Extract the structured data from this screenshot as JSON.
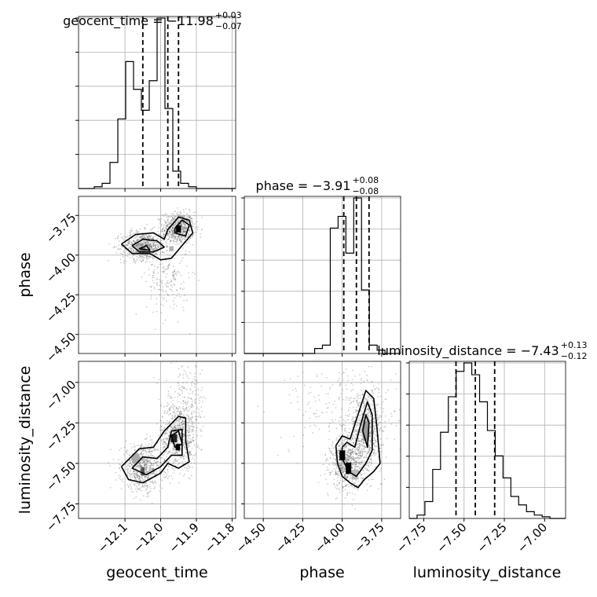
{
  "chart_data": {
    "type": "corner",
    "parameters": [
      "geocent_time",
      "phase",
      "luminosity_distance"
    ],
    "ranges": {
      "geocent_time": [
        -12.23,
        -11.79
      ],
      "phase": [
        -4.62,
        -3.63
      ],
      "luminosity_distance": [
        -7.84,
        -6.87
      ]
    },
    "ticks": {
      "geocent_time": {
        "values": [
          -12.1,
          -12.0,
          -11.9,
          -11.8
        ],
        "labels": [
          "−12.1",
          "−12.0",
          "−11.9",
          "−11.8"
        ]
      },
      "phase": {
        "values": [
          -4.5,
          -4.25,
          -4.0,
          -3.75
        ],
        "labels": [
          "−4.50",
          "−4.25",
          "−4.00",
          "−3.75"
        ]
      },
      "luminosity_distance": {
        "values": [
          -7.75,
          -7.5,
          -7.25,
          -7.0
        ],
        "labels": [
          "−7.75",
          "−7.50",
          "−7.25",
          "−7.00"
        ]
      }
    },
    "titles": [
      {
        "param": "geocent_time",
        "main": "geocent_time = −11.98",
        "sup": "+0.03",
        "sub": "−0.07"
      },
      {
        "param": "phase",
        "main": "phase = −3.91",
        "sup": "+0.08",
        "sub": "−0.08"
      },
      {
        "param": "luminosity_distance",
        "main": "luminosity_distance = −7.43",
        "sup": "+0.13",
        "sub": "−0.12"
      }
    ],
    "quantiles": {
      "geocent_time": [
        -12.05,
        -11.98,
        -11.95
      ],
      "phase": [
        -3.99,
        -3.91,
        -3.83
      ],
      "luminosity_distance": [
        -7.55,
        -7.43,
        -7.31
      ]
    },
    "histograms": {
      "geocent_time": {
        "start": -12.23,
        "width": 0.022,
        "counts": [
          0,
          0,
          0.01,
          0.03,
          0.15,
          0.4,
          0.73,
          0.57,
          0.45,
          0.62,
          0.98,
          0.46,
          0.1,
          0.03,
          0.01,
          0,
          0,
          0,
          0,
          0
        ]
      },
      "phase": {
        "start": -4.62,
        "width": 0.0495,
        "counts": [
          0,
          0,
          0,
          0,
          0,
          0,
          0,
          0,
          0,
          0.03,
          0.05,
          0.75,
          0.82,
          0.6,
          0.93,
          0.38,
          0.05,
          0.02,
          0,
          0
        ]
      },
      "luminosity_distance": {
        "start": -7.84,
        "width": 0.0485,
        "counts": [
          0,
          0.02,
          0.1,
          0.29,
          0.51,
          0.72,
          0.87,
          0.92,
          0.85,
          0.69,
          0.52,
          0.37,
          0.24,
          0.13,
          0.08,
          0.04,
          0.02,
          0.01,
          0,
          0
        ]
      }
    },
    "scatter_clusters": [
      {
        "x": "geocent_time",
        "y": "phase",
        "clusters": [
          {
            "cx": -11.95,
            "cy": -3.83,
            "sx": 0.022,
            "sy": 0.05,
            "n": 700
          },
          {
            "cx": -12.05,
            "cy": -3.94,
            "sx": 0.03,
            "sy": 0.045,
            "n": 700
          },
          {
            "cx": -11.98,
            "cy": -4.15,
            "sx": 0.03,
            "sy": 0.12,
            "n": 200
          }
        ]
      },
      {
        "x": "geocent_time",
        "y": "luminosity_distance",
        "clusters": [
          {
            "cx": -11.95,
            "cy": -7.33,
            "sx": 0.025,
            "sy": 0.1,
            "n": 700
          },
          {
            "cx": -12.05,
            "cy": -7.53,
            "sx": 0.03,
            "sy": 0.07,
            "n": 700
          },
          {
            "cx": -11.93,
            "cy": -7.12,
            "sx": 0.03,
            "sy": 0.12,
            "n": 200
          }
        ]
      },
      {
        "x": "phase",
        "y": "luminosity_distance",
        "clusters": [
          {
            "cx": -3.97,
            "cy": -7.5,
            "sx": 0.05,
            "sy": 0.08,
            "n": 700
          },
          {
            "cx": -3.85,
            "cy": -7.3,
            "sx": 0.05,
            "sy": 0.12,
            "n": 700
          },
          {
            "cx": -3.97,
            "cy": -7.15,
            "sx": 0.18,
            "sy": 0.15,
            "n": 250
          }
        ]
      }
    ],
    "density_patches": [
      {
        "x": "geocent_time",
        "y": "phase",
        "patches": [
          {
            "x": -11.95,
            "y": -3.835,
            "w": 0.014,
            "h": 0.045,
            "shade": "#000000"
          },
          {
            "x": -12.05,
            "y": -3.965,
            "w": 0.016,
            "h": 0.03,
            "shade": "#7a7a7a"
          },
          {
            "x": -11.97,
            "y": -3.96,
            "w": 0.012,
            "h": 0.03,
            "shade": "#b0b0b0"
          }
        ]
      },
      {
        "x": "geocent_time",
        "y": "luminosity_distance",
        "patches": [
          {
            "x": -11.963,
            "y": -7.345,
            "w": 0.018,
            "h": 0.05,
            "shade": "#222222"
          },
          {
            "x": -11.952,
            "y": -7.4,
            "w": 0.012,
            "h": 0.04,
            "shade": "#000000"
          },
          {
            "x": -12.05,
            "y": -7.55,
            "w": 0.01,
            "h": 0.05,
            "shade": "#555555"
          },
          {
            "x": -12.07,
            "y": -7.47,
            "w": 0.02,
            "h": 0.06,
            "shade": "#aaaaaa"
          }
        ]
      },
      {
        "x": "phase",
        "y": "luminosity_distance",
        "patches": [
          {
            "x": -4.0,
            "y": -7.45,
            "w": 0.035,
            "h": 0.06,
            "shade": "#000000"
          },
          {
            "x": -3.96,
            "y": -7.53,
            "w": 0.035,
            "h": 0.07,
            "shade": "#000000"
          },
          {
            "x": -3.85,
            "y": -7.3,
            "w": 0.04,
            "h": 0.12,
            "shade": "#999999"
          },
          {
            "x": -3.92,
            "y": -7.57,
            "w": 0.04,
            "h": 0.06,
            "shade": "#bbbbbb"
          }
        ]
      }
    ],
    "contours": [
      {
        "x": "geocent_time",
        "y": "phase",
        "lines": [
          [
            [
              -12.11,
              -3.93
            ],
            [
              -12.07,
              -3.87
            ],
            [
              -12.02,
              -3.86
            ],
            [
              -11.99,
              -3.9
            ],
            [
              -11.98,
              -3.84
            ],
            [
              -11.95,
              -3.76
            ],
            [
              -11.92,
              -3.78
            ],
            [
              -11.91,
              -3.86
            ],
            [
              -11.94,
              -3.94
            ],
            [
              -11.97,
              -4.02
            ],
            [
              -12.0,
              -4.03
            ],
            [
              -12.03,
              -3.99
            ],
            [
              -12.08,
              -3.99
            ],
            [
              -12.11,
              -3.93
            ]
          ],
          [
            [
              -12.08,
              -3.94
            ],
            [
              -12.05,
              -3.9
            ],
            [
              -12.01,
              -3.91
            ],
            [
              -11.99,
              -3.95
            ],
            [
              -12.02,
              -3.98
            ],
            [
              -12.06,
              -3.98
            ],
            [
              -12.08,
              -3.94
            ]
          ],
          [
            [
              -11.96,
              -3.83
            ],
            [
              -11.94,
              -3.78
            ],
            [
              -11.92,
              -3.81
            ],
            [
              -11.93,
              -3.88
            ],
            [
              -11.96,
              -3.86
            ],
            [
              -11.96,
              -3.83
            ]
          ],
          [
            [
              -12.06,
              -3.96
            ],
            [
              -12.04,
              -3.94
            ],
            [
              -12.03,
              -3.97
            ],
            [
              -12.06,
              -3.96
            ]
          ]
        ]
      },
      {
        "x": "geocent_time",
        "y": "luminosity_distance",
        "lines": [
          [
            [
              -12.11,
              -7.52
            ],
            [
              -12.06,
              -7.41
            ],
            [
              -12.02,
              -7.4
            ],
            [
              -11.99,
              -7.3
            ],
            [
              -11.95,
              -7.21
            ],
            [
              -11.93,
              -7.22
            ],
            [
              -11.93,
              -7.36
            ],
            [
              -11.92,
              -7.49
            ],
            [
              -11.95,
              -7.53
            ],
            [
              -11.98,
              -7.5
            ],
            [
              -12.0,
              -7.56
            ],
            [
              -12.05,
              -7.62
            ],
            [
              -12.09,
              -7.6
            ],
            [
              -12.11,
              -7.52
            ]
          ],
          [
            [
              -12.08,
              -7.53
            ],
            [
              -12.05,
              -7.46
            ],
            [
              -12.01,
              -7.47
            ],
            [
              -11.98,
              -7.4
            ],
            [
              -11.97,
              -7.3
            ],
            [
              -11.94,
              -7.29
            ],
            [
              -11.94,
              -7.45
            ],
            [
              -11.97,
              -7.45
            ],
            [
              -12.0,
              -7.52
            ],
            [
              -12.04,
              -7.57
            ],
            [
              -12.08,
              -7.53
            ]
          ],
          [
            [
              -11.97,
              -7.33
            ],
            [
              -11.95,
              -7.3
            ],
            [
              -11.94,
              -7.38
            ],
            [
              -11.96,
              -7.4
            ],
            [
              -11.97,
              -7.33
            ]
          ]
        ]
      },
      {
        "x": "phase",
        "y": "luminosity_distance",
        "lines": [
          [
            [
              -4.04,
              -7.39
            ],
            [
              -4.0,
              -7.33
            ],
            [
              -3.95,
              -7.35
            ],
            [
              -3.9,
              -7.2
            ],
            [
              -3.85,
              -7.05
            ],
            [
              -3.8,
              -7.1
            ],
            [
              -3.78,
              -7.28
            ],
            [
              -3.76,
              -7.5
            ],
            [
              -3.8,
              -7.55
            ],
            [
              -3.86,
              -7.6
            ],
            [
              -3.9,
              -7.65
            ],
            [
              -3.95,
              -7.62
            ],
            [
              -4.0,
              -7.58
            ],
            [
              -4.03,
              -7.5
            ],
            [
              -4.04,
              -7.39
            ]
          ],
          [
            [
              -4.0,
              -7.4
            ],
            [
              -3.97,
              -7.37
            ],
            [
              -3.92,
              -7.4
            ],
            [
              -3.88,
              -7.25
            ],
            [
              -3.84,
              -7.12
            ],
            [
              -3.81,
              -7.2
            ],
            [
              -3.81,
              -7.42
            ],
            [
              -3.85,
              -7.5
            ],
            [
              -3.91,
              -7.58
            ],
            [
              -3.96,
              -7.55
            ],
            [
              -4.0,
              -7.47
            ],
            [
              -4.0,
              -7.4
            ]
          ],
          [
            [
              -3.87,
              -7.3
            ],
            [
              -3.85,
              -7.2
            ],
            [
              -3.83,
              -7.25
            ],
            [
              -3.84,
              -7.4
            ],
            [
              -3.87,
              -7.3
            ]
          ]
        ]
      }
    ]
  }
}
